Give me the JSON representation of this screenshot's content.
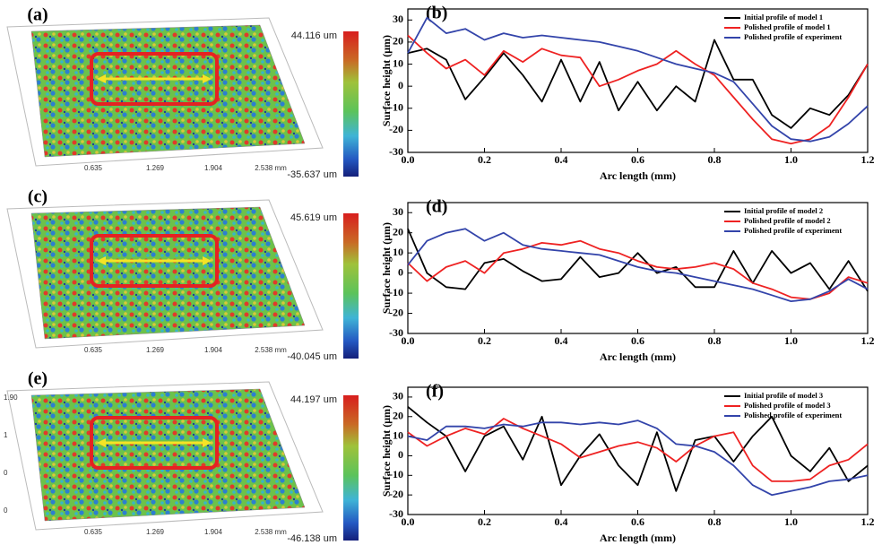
{
  "surfaces": [
    {
      "label": "(a)",
      "max_label": "44.116 um",
      "min_label": "-35.637 um",
      "axis_ticks": [
        "0.635",
        "1.269",
        "1.904",
        "2.538 mm"
      ]
    },
    {
      "label": "(c)",
      "max_label": "45.619 um",
      "min_label": "-40.045 um",
      "axis_ticks": [
        "0.635",
        "1.269",
        "1.904",
        "2.538 mm"
      ]
    },
    {
      "label": "(e)",
      "max_label": "44.197 um",
      "min_label": "-46.138 um",
      "axis_ticks": [
        "0.635",
        "1.269",
        "1.904",
        "2.538 mm"
      ],
      "side_ticks": [
        "1.90",
        "1",
        "0",
        "0"
      ]
    }
  ],
  "chart_data": [
    {
      "type": "line",
      "title": "(b)",
      "xlabel": "Arc length (mm)",
      "ylabel": "Surface height (μm)",
      "x": [
        0,
        0.05,
        0.1,
        0.15,
        0.2,
        0.25,
        0.3,
        0.35,
        0.4,
        0.45,
        0.5,
        0.55,
        0.6,
        0.65,
        0.7,
        0.75,
        0.8,
        0.85,
        0.9,
        0.95,
        1.0,
        1.05,
        1.1,
        1.15,
        1.2
      ],
      "series": [
        {
          "name": "Initial profile of model 1",
          "color": "#000000",
          "values": [
            15,
            17,
            12,
            -6,
            4,
            15,
            5,
            -7,
            12,
            -7,
            11,
            -11,
            2,
            -11,
            0,
            -7,
            21,
            3,
            3,
            -13,
            -19,
            -10,
            -13,
            -4,
            10
          ]
        },
        {
          "name": "Polished profile of model 1",
          "color": "#ee2222",
          "values": [
            23,
            15,
            8,
            12,
            5,
            16,
            11,
            17,
            14,
            13,
            0,
            3,
            7,
            10,
            16,
            10,
            5,
            -5,
            -15,
            -24,
            -26,
            -24,
            -18,
            -5,
            10
          ]
        },
        {
          "name": "Polished profile of experiment",
          "color": "#3344aa",
          "values": [
            15,
            31,
            24,
            26,
            21,
            24,
            22,
            23,
            22,
            21,
            20,
            18,
            16,
            13,
            10,
            8,
            6,
            2,
            -8,
            -18,
            -24,
            -25,
            -23,
            -17,
            -9
          ]
        }
      ],
      "xlim": [
        0,
        1.2
      ],
      "ylim": [
        -30,
        35
      ],
      "xticks": [
        {
          "value": 0,
          "label": "0.0"
        },
        0.2,
        0.4,
        0.6,
        0.8,
        {
          "value": 1,
          "label": "1.0"
        },
        1.2
      ],
      "yticks": [
        -30,
        -20,
        -10,
        0,
        10,
        20,
        30
      ],
      "legend": "upper right"
    },
    {
      "type": "line",
      "title": "(d)",
      "xlabel": "Arc length (mm)",
      "ylabel": "Surface height (μm)",
      "x": [
        0,
        0.05,
        0.1,
        0.15,
        0.2,
        0.25,
        0.3,
        0.35,
        0.4,
        0.45,
        0.5,
        0.55,
        0.6,
        0.65,
        0.7,
        0.75,
        0.8,
        0.85,
        0.9,
        0.95,
        1.0,
        1.05,
        1.1,
        1.15,
        1.2
      ],
      "series": [
        {
          "name": "Initial profile of model 2",
          "color": "#000000",
          "values": [
            22,
            0,
            -7,
            -8,
            5,
            7,
            1,
            -4,
            -3,
            8,
            -2,
            0,
            10,
            0,
            3,
            -7,
            -7,
            11,
            -5,
            11,
            0,
            5,
            -8,
            6,
            -9
          ]
        },
        {
          "name": "Polished profile of model 2",
          "color": "#ee2222",
          "values": [
            5,
            -4,
            3,
            6,
            0,
            10,
            12,
            15,
            14,
            16,
            12,
            10,
            6,
            3,
            2,
            3,
            5,
            2,
            -5,
            -8,
            -12,
            -13,
            -10,
            -2,
            -5
          ]
        },
        {
          "name": "Polished profile of experiment",
          "color": "#3344aa",
          "values": [
            4,
            16,
            20,
            22,
            16,
            20,
            14,
            12,
            11,
            10,
            9,
            6,
            3,
            1,
            0,
            -2,
            -4,
            -6,
            -8,
            -11,
            -14,
            -13,
            -9,
            -3,
            -8
          ]
        }
      ],
      "xlim": [
        0,
        1.2
      ],
      "ylim": [
        -30,
        35
      ],
      "xticks": [
        {
          "value": 0,
          "label": "0.0"
        },
        0.2,
        0.4,
        0.6,
        0.8,
        {
          "value": 1,
          "label": "1.0"
        },
        1.2
      ],
      "yticks": [
        -30,
        -20,
        -10,
        0,
        10,
        20,
        30
      ],
      "legend": "upper right"
    },
    {
      "type": "line",
      "title": "(f)",
      "xlabel": "Arc length (mm)",
      "ylabel": "Surface height (μm)",
      "x": [
        0,
        0.05,
        0.1,
        0.15,
        0.2,
        0.25,
        0.3,
        0.35,
        0.4,
        0.45,
        0.5,
        0.55,
        0.6,
        0.65,
        0.7,
        0.75,
        0.8,
        0.85,
        0.9,
        0.95,
        1.0,
        1.05,
        1.1,
        1.15,
        1.2
      ],
      "series": [
        {
          "name": "Initial profile of model 3",
          "color": "#000000",
          "values": [
            25,
            17,
            10,
            -8,
            10,
            15,
            -2,
            20,
            -15,
            0,
            11,
            -5,
            -15,
            12,
            -18,
            8,
            10,
            -3,
            10,
            20,
            0,
            -8,
            4,
            -13,
            -5
          ]
        },
        {
          "name": "Polished profile of model 3",
          "color": "#ee2222",
          "values": [
            12,
            5,
            10,
            14,
            11,
            19,
            14,
            10,
            6,
            -1,
            2,
            5,
            7,
            4,
            -3,
            5,
            10,
            12,
            -5,
            -13,
            -13,
            -12,
            -5,
            -2,
            6
          ]
        },
        {
          "name": "Polished profile of experiment",
          "color": "#3344aa",
          "values": [
            10,
            8,
            15,
            15,
            14,
            16,
            15,
            17,
            17,
            16,
            17,
            16,
            18,
            14,
            6,
            5,
            2,
            -5,
            -15,
            -20,
            -18,
            -16,
            -13,
            -12,
            -10
          ]
        }
      ],
      "xlim": [
        0,
        1.2
      ],
      "ylim": [
        -30,
        35
      ],
      "xticks": [
        {
          "value": 0,
          "label": "0.0"
        },
        0.2,
        0.4,
        0.6,
        0.8,
        {
          "value": 1,
          "label": "1.0"
        },
        1.2
      ],
      "yticks": [
        -30,
        -20,
        -10,
        0,
        10,
        20,
        30
      ],
      "legend": "upper right"
    }
  ]
}
